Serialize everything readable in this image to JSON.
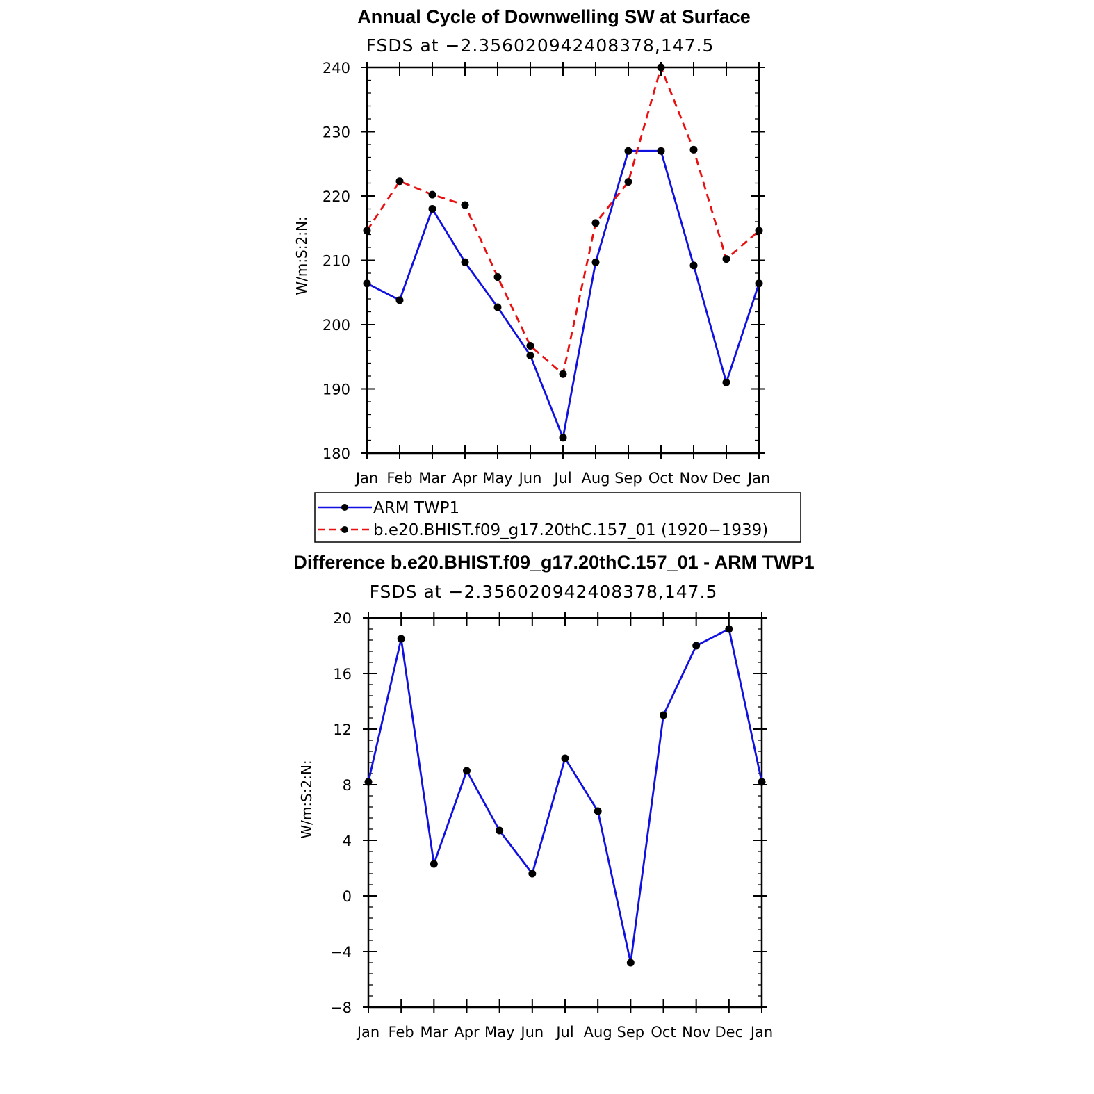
{
  "chart_data": [
    {
      "type": "line",
      "title": "Annual Cycle of Downwelling SW at Surface",
      "subtitle": "FSDS at −2.356020942408378,147.5",
      "ylabel": "W/m:S:2:N:",
      "xlabel": "",
      "categories": [
        "Jan",
        "Feb",
        "Mar",
        "Apr",
        "May",
        "Jun",
        "Jul",
        "Aug",
        "Sep",
        "Oct",
        "Nov",
        "Dec",
        "Jan"
      ],
      "ylim": [
        180,
        240
      ],
      "yticks": [
        180,
        190,
        200,
        210,
        220,
        230,
        240
      ],
      "ytick_labels": [
        "180",
        "190",
        "200",
        "210",
        "220",
        "230",
        "240"
      ],
      "grid": false,
      "series": [
        {
          "name": "ARM TWP1",
          "color": "#1010e0",
          "dash": "solid",
          "values": [
            206.4,
            203.8,
            218.0,
            209.7,
            202.7,
            195.2,
            182.4,
            209.7,
            227.0,
            227.0,
            209.2,
            191.0,
            206.4
          ]
        },
        {
          "name": "b.e20.BHIST.f09_g17.20thC.157_01 (1920−1939)",
          "color": "#e81010",
          "dash": "dashed",
          "values": [
            214.6,
            222.3,
            220.2,
            218.6,
            207.4,
            196.7,
            192.3,
            215.8,
            222.2,
            240.0,
            227.2,
            210.2,
            214.6
          ]
        }
      ],
      "legend": {
        "position": "below",
        "entries": [
          "ARM TWP1",
          "b.e20.BHIST.f09_g17.20thC.157_01 (1920−1939)"
        ]
      }
    },
    {
      "type": "line",
      "title": "Difference b.e20.BHIST.f09_g17.20thC.157_01 - ARM TWP1",
      "subtitle": "FSDS at −2.356020942408378,147.5",
      "ylabel": "W/m:S:2:N:",
      "xlabel": "",
      "categories": [
        "Jan",
        "Feb",
        "Mar",
        "Apr",
        "May",
        "Jun",
        "Jul",
        "Aug",
        "Sep",
        "Oct",
        "Nov",
        "Dec",
        "Jan"
      ],
      "ylim": [
        -8,
        20
      ],
      "yticks": [
        -8,
        -4,
        0,
        4,
        8,
        12,
        16,
        20
      ],
      "ytick_labels": [
        "−8",
        "−4",
        "0",
        "4",
        "8",
        "12",
        "16",
        "20"
      ],
      "grid": false,
      "series": [
        {
          "color": "#1010e0",
          "dash": "solid",
          "values": [
            8.2,
            18.5,
            2.3,
            9.0,
            4.7,
            1.6,
            9.9,
            6.1,
            -4.8,
            13.0,
            18.0,
            19.2,
            8.2
          ]
        }
      ]
    }
  ]
}
